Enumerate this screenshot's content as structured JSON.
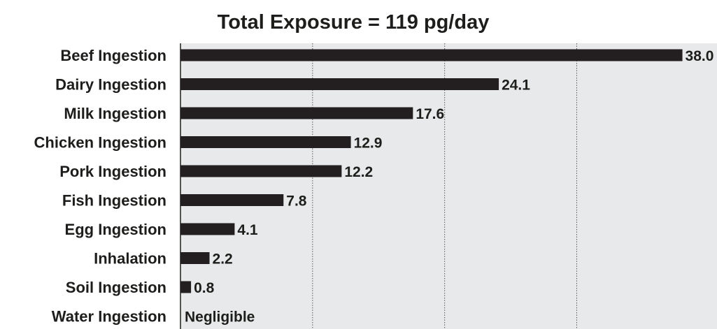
{
  "chart_data": {
    "type": "bar",
    "orientation": "horizontal",
    "title": "Total Exposure = 119 pg/day",
    "categories": [
      "Beef Ingestion",
      "Dairy Ingestion",
      "Milk Ingestion",
      "Chicken Ingestion",
      "Pork Ingestion",
      "Fish Ingestion",
      "Egg Ingestion",
      "Inhalation",
      "Soil Ingestion",
      "Water Ingestion"
    ],
    "values": [
      38.0,
      24.1,
      17.6,
      12.9,
      12.2,
      7.8,
      4.1,
      2.2,
      0.8,
      null
    ],
    "value_labels": [
      "38.0",
      "24.1",
      "17.6",
      "12.9",
      "12.2",
      "7.8",
      "4.1",
      "2.2",
      "0.8",
      "Negligible"
    ],
    "xlim": [
      0,
      40
    ],
    "gridlines_x": [
      10,
      20,
      30
    ],
    "grid": true,
    "xlabel": "",
    "ylabel": "",
    "colors": {
      "bar": "#231f20",
      "plot_background": "#e8e9ea",
      "text": "#1d1d1b",
      "grid": "#555555"
    }
  }
}
